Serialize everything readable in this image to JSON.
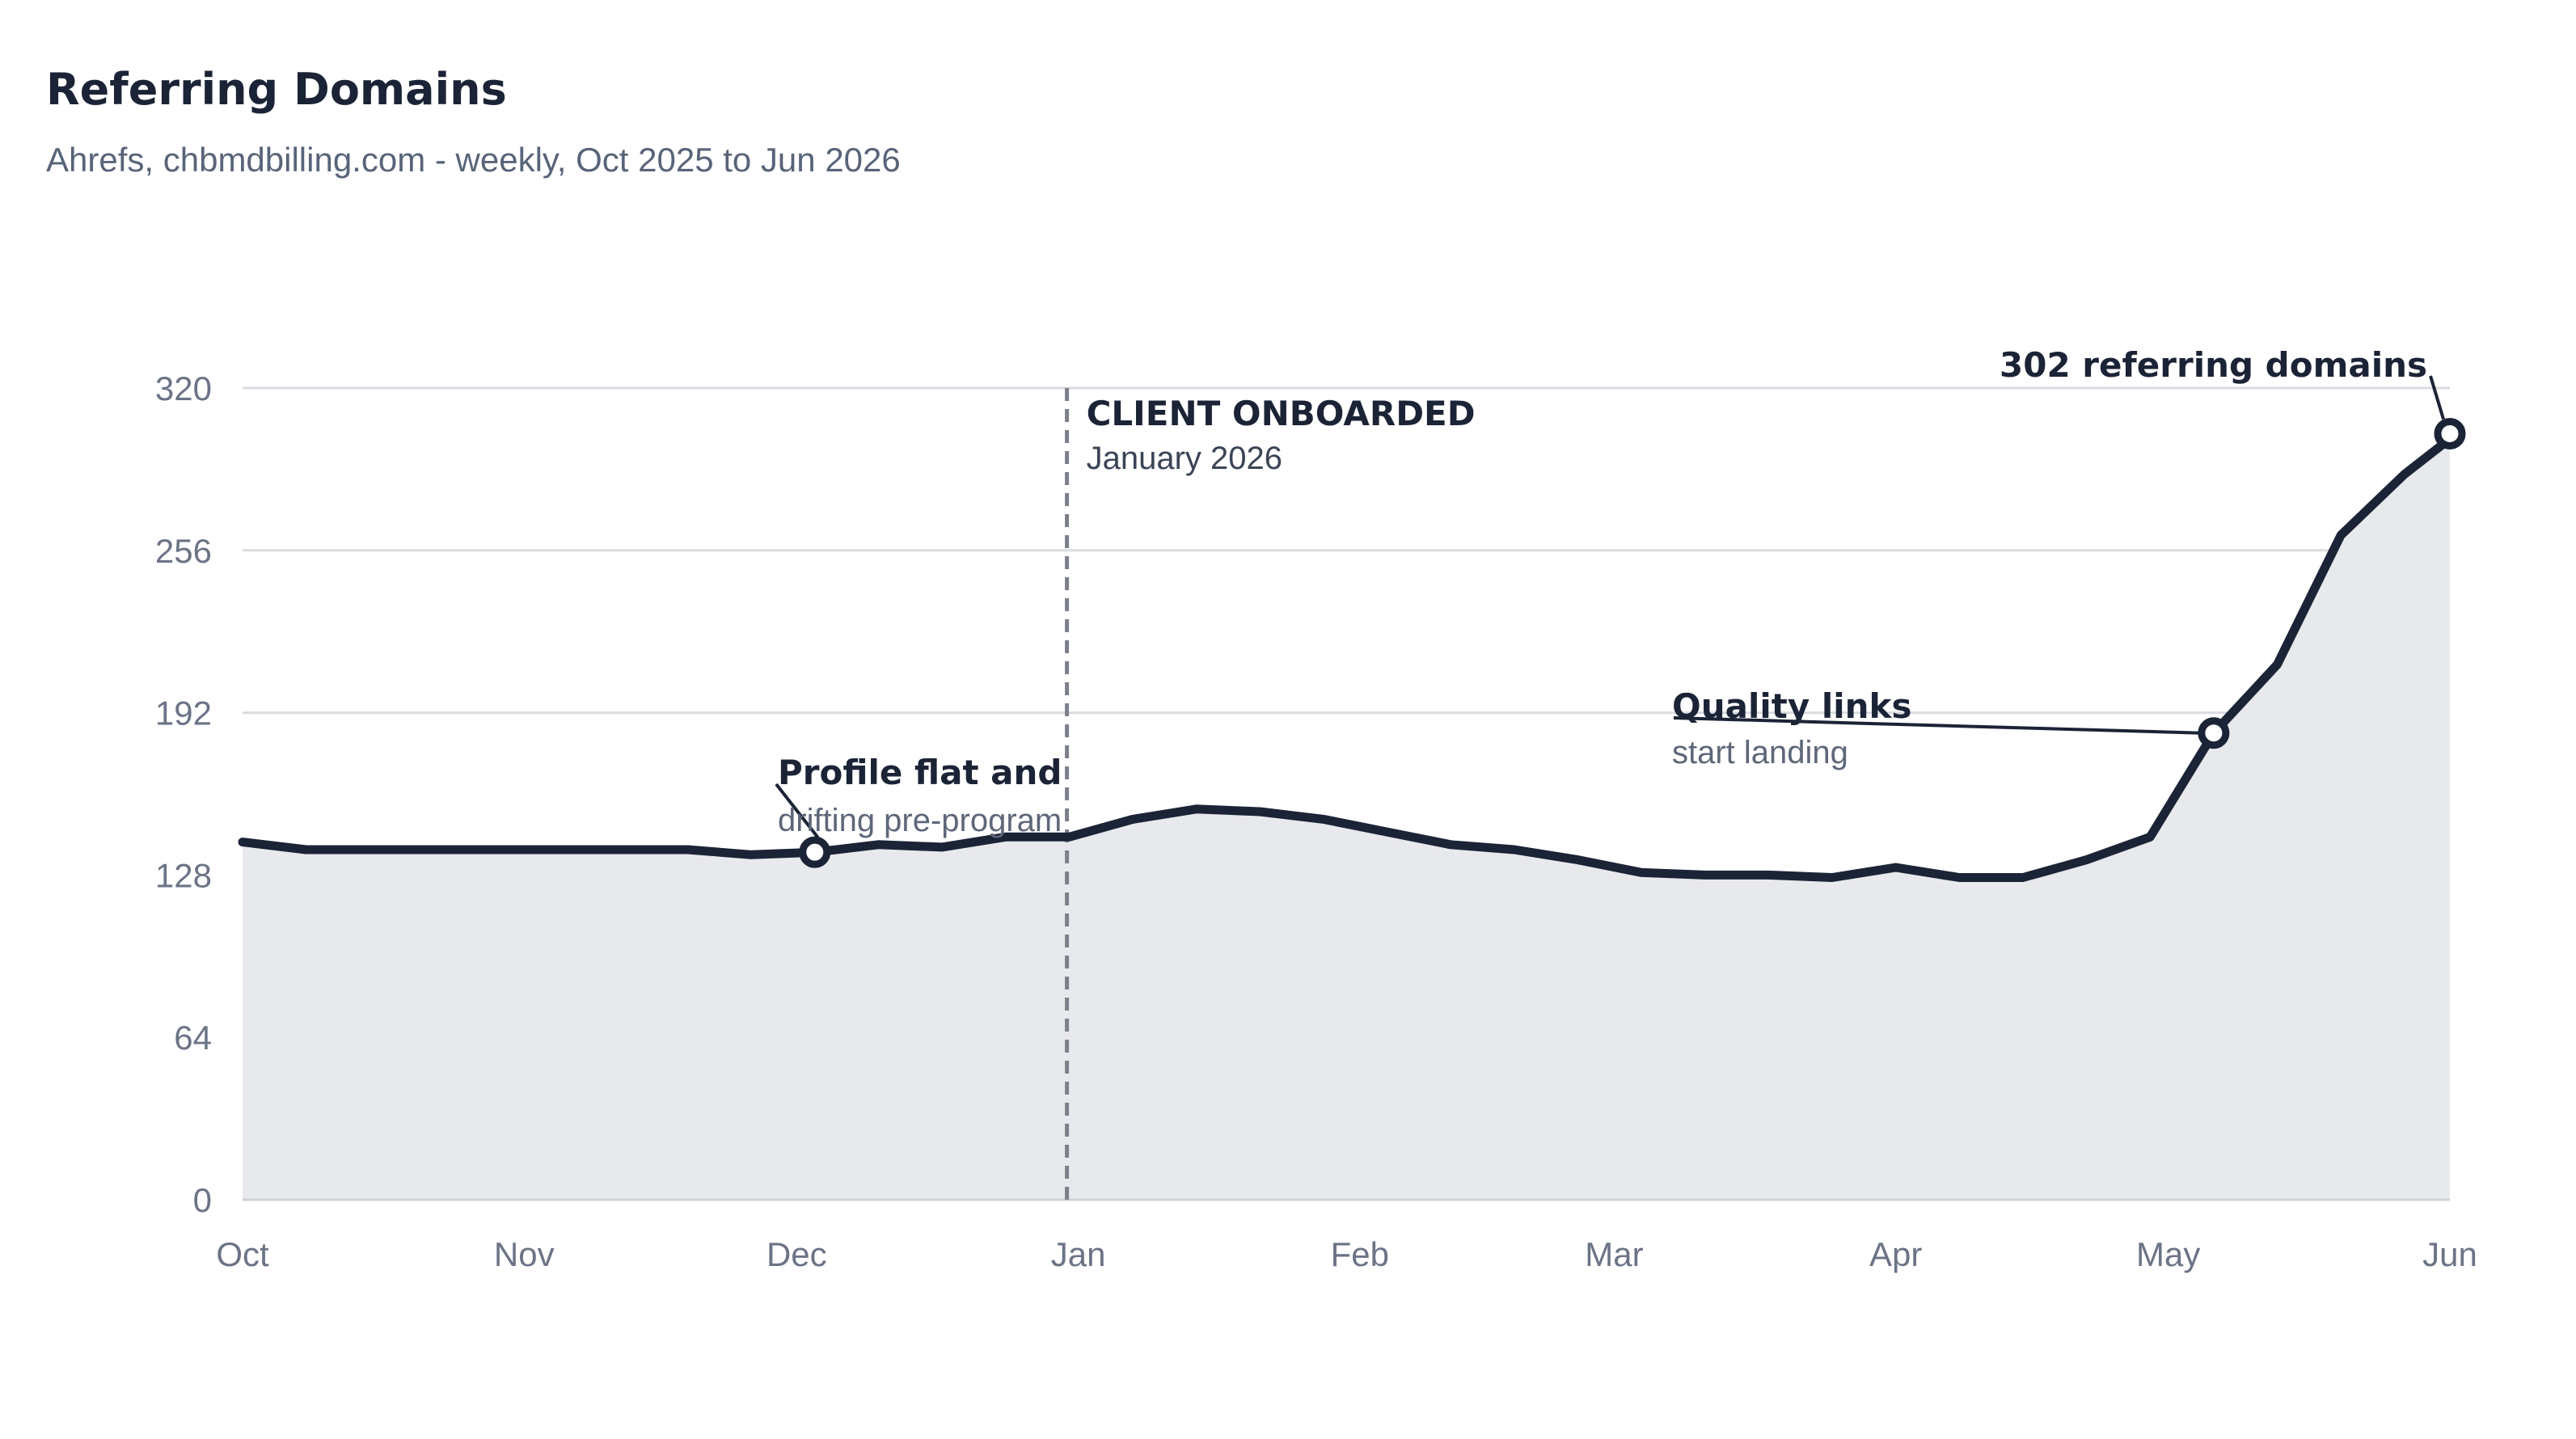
{
  "chart_data": {
    "type": "area",
    "title": "Referring Domains",
    "subtitle": "Ahrefs, chbmdbilling.com - weekly, Oct 2025 to Jun 2026",
    "xlabel": "",
    "ylabel": "",
    "x_range": [
      "2025-10-01",
      "2026-06-01"
    ],
    "ylim": [
      0,
      320
    ],
    "y_ticks": [
      0,
      64,
      128,
      192,
      256,
      320
    ],
    "x_ticks": [
      {
        "label": "Oct",
        "date": "2025-10-01"
      },
      {
        "label": "Nov",
        "date": "2025-11-01"
      },
      {
        "label": "Dec",
        "date": "2025-12-01"
      },
      {
        "label": "Jan",
        "date": "2026-01-01"
      },
      {
        "label": "Feb",
        "date": "2026-02-01"
      },
      {
        "label": "Mar",
        "date": "2026-03-01"
      },
      {
        "label": "Apr",
        "date": "2026-04-01"
      },
      {
        "label": "May",
        "date": "2026-05-01"
      },
      {
        "label": "Jun",
        "date": "2026-06-01"
      }
    ],
    "grid": true,
    "legend": "none",
    "series": [
      {
        "color": "#1b2436",
        "fill": "#e8e9ed",
        "points": [
          {
            "x": "2025-10-01",
            "y": 141
          },
          {
            "x": "2025-10-08",
            "y": 138
          },
          {
            "x": "2025-10-15",
            "y": 138
          },
          {
            "x": "2025-10-22",
            "y": 138
          },
          {
            "x": "2025-10-29",
            "y": 138
          },
          {
            "x": "2025-11-05",
            "y": 138
          },
          {
            "x": "2025-11-12",
            "y": 138
          },
          {
            "x": "2025-11-19",
            "y": 138
          },
          {
            "x": "2025-11-26",
            "y": 136
          },
          {
            "x": "2025-12-03",
            "y": 137
          },
          {
            "x": "2025-12-10",
            "y": 140
          },
          {
            "x": "2025-12-17",
            "y": 139
          },
          {
            "x": "2025-12-24",
            "y": 143
          },
          {
            "x": "2025-12-31",
            "y": 143
          },
          {
            "x": "2026-01-07",
            "y": 150
          },
          {
            "x": "2026-01-14",
            "y": 154
          },
          {
            "x": "2026-01-21",
            "y": 153
          },
          {
            "x": "2026-01-28",
            "y": 150
          },
          {
            "x": "2026-02-04",
            "y": 145
          },
          {
            "x": "2026-02-11",
            "y": 140
          },
          {
            "x": "2026-02-18",
            "y": 138
          },
          {
            "x": "2026-02-25",
            "y": 134
          },
          {
            "x": "2026-03-04",
            "y": 129
          },
          {
            "x": "2026-03-11",
            "y": 128
          },
          {
            "x": "2026-03-18",
            "y": 128
          },
          {
            "x": "2026-03-25",
            "y": 127
          },
          {
            "x": "2026-04-01",
            "y": 131
          },
          {
            "x": "2026-04-08",
            "y": 127
          },
          {
            "x": "2026-04-15",
            "y": 127
          },
          {
            "x": "2026-04-22",
            "y": 134
          },
          {
            "x": "2026-04-29",
            "y": 143
          },
          {
            "x": "2026-05-06",
            "y": 184
          },
          {
            "x": "2026-05-13",
            "y": 211
          },
          {
            "x": "2026-05-20",
            "y": 262
          },
          {
            "x": "2026-05-27",
            "y": 286
          },
          {
            "x": "2026-06-03",
            "y": 300
          },
          {
            "x": "2026-06-10",
            "y": 302
          }
        ]
      }
    ],
    "annotations": [
      {
        "kind": "vline",
        "x": "2026-01-01",
        "title": "CLIENT ONBOARDED",
        "text": "January 2026"
      },
      {
        "kind": "point",
        "x": "2025-12-03",
        "y": 137,
        "title": "Profile flat and",
        "text": "drifting pre-program"
      },
      {
        "kind": "point",
        "x": "2026-05-06",
        "y": 184,
        "title": "Quality links",
        "text": "start landing"
      },
      {
        "kind": "point",
        "x": "2026-06-10",
        "y": 302,
        "title": "302 referring domains",
        "text": ""
      }
    ]
  },
  "colors": {
    "line": "#1b2436",
    "fill": "#e8e9ed",
    "grid": "#d9dbe1",
    "axis_text": "#6b7486",
    "vline": "#7d808b"
  }
}
